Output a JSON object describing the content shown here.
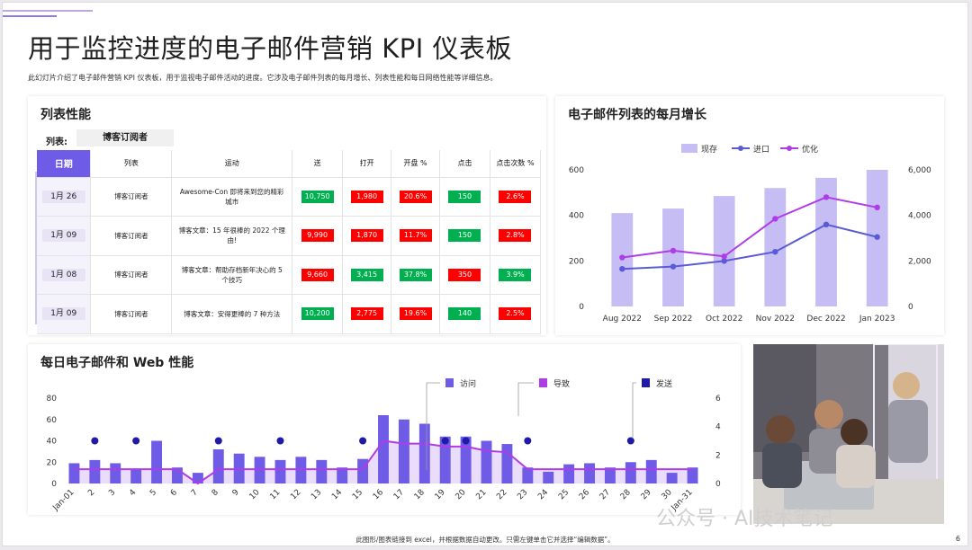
{
  "page": {
    "title": "用于监控进度的电子邮件营销 KPI 仪表板",
    "subtitle": "此幻灯片介绍了电子邮件营销 KPI 仪表板，用于监视电子邮件活动的进度。它涉及电子邮件列表的每月增长、列表性能和每日网络性能等详细信息。",
    "footer": "此图形/图表链接到 excel，并根据数据自动更改。只需左键单击它并选择“编辑数据”。",
    "page_number": "6",
    "watermark": "公众号 · AI技术笔记",
    "colors": {
      "accent": "#6e5ce6",
      "bar_light": "#c5bdf3",
      "line_blue": "#5b5bd6",
      "line_purple": "#b03ce8",
      "dot_navy": "#1f1aa8",
      "red": "#ff0000",
      "green": "#00b050"
    }
  },
  "list_perf": {
    "title": "列表性能",
    "list_label": "列表:",
    "list_value": "博客订阅者",
    "headers": [
      "日期",
      "列表",
      "运动",
      "送",
      "打开",
      "开盘 %",
      "点击",
      "点击次数 %"
    ],
    "rows": [
      {
        "date": "1月 26",
        "list": "博客订阅者",
        "campaign": "Awesome-Con 即将来到您的精彩城市",
        "sent": "10,750",
        "sent_c": "green",
        "open": "1,980",
        "open_c": "red",
        "open_pct": "20.6%",
        "open_pct_c": "red",
        "click": "150",
        "click_c": "green",
        "click_pct": "2.6%",
        "click_pct_c": "red"
      },
      {
        "date": "1月 09",
        "list": "博客订阅者",
        "campaign": "博客文章：15 年很棒的 2022 个理由!",
        "sent": "9,990",
        "sent_c": "red",
        "open": "1,870",
        "open_c": "red",
        "open_pct": "11.7%",
        "open_pct_c": "red",
        "click": "150",
        "click_c": "green",
        "click_pct": "2.8%",
        "click_pct_c": "red"
      },
      {
        "date": "1月 08",
        "list": "博客订阅者",
        "campaign": "博客文章：帮助存档新年决心的 5 个技巧",
        "sent": "9,660",
        "sent_c": "red",
        "open": "3,415",
        "open_c": "green",
        "open_pct": "37.8%",
        "open_pct_c": "green",
        "click": "350",
        "click_c": "red",
        "click_pct": "3.9%",
        "click_pct_c": "green"
      },
      {
        "date": "1月 09",
        "list": "博客订阅者",
        "campaign": "博客文章：安得更棒的 7 种方法",
        "sent": "10,200",
        "sent_c": "green",
        "open": "2,775",
        "open_c": "red",
        "open_pct": "19.6%",
        "open_pct_c": "red",
        "click": "140",
        "click_c": "green",
        "click_pct": "2.5%",
        "click_pct_c": "red"
      }
    ]
  },
  "chart_data": [
    {
      "type": "bar",
      "title": "电子邮件列表的每月增长",
      "categories": [
        "Aug 2022",
        "Sep 2022",
        "Oct 2022",
        "Nov 2022",
        "Dec 2022",
        "Jan 2023"
      ],
      "ylim": [
        0,
        600
      ],
      "y2lim": [
        0,
        6000
      ],
      "yticks": [
        "0",
        "200",
        "400",
        "600"
      ],
      "y2ticks": [
        "0",
        "2,000",
        "4,000",
        "6,000"
      ],
      "legend": [
        "现存",
        "进口",
        "优化"
      ],
      "legend_position": "top",
      "series": [
        {
          "name": "现存",
          "kind": "bar",
          "axis": "left",
          "values": [
            410,
            430,
            485,
            520,
            565,
            600
          ]
        },
        {
          "name": "进口",
          "kind": "line",
          "axis": "right",
          "values": [
            1650,
            1750,
            2000,
            2400,
            3600,
            3050
          ]
        },
        {
          "name": "优化",
          "kind": "line",
          "axis": "right",
          "values": [
            2150,
            2450,
            2200,
            3850,
            4800,
            4350
          ]
        }
      ]
    },
    {
      "type": "bar",
      "title": "每日电子邮件和 Web 性能",
      "categories": [
        "Jan-01",
        "2",
        "3",
        "4",
        "5",
        "6",
        "7",
        "8",
        "9",
        "10",
        "11",
        "12",
        "13",
        "14",
        "15",
        "16",
        "17",
        "18",
        "19",
        "20",
        "21",
        "22",
        "23",
        "24",
        "25",
        "26",
        "27",
        "28",
        "29",
        "30",
        "Jan-31"
      ],
      "ylim": [
        0,
        80
      ],
      "y2lim": [
        0,
        6
      ],
      "yticks": [
        "0",
        "20",
        "40",
        "60",
        "80"
      ],
      "y2ticks": [
        "0",
        "2",
        "4",
        "6"
      ],
      "legend": [
        "访问",
        "导致",
        "发送"
      ],
      "legend_position": "top-right",
      "series": [
        {
          "name": "访问",
          "kind": "bar",
          "axis": "left",
          "values": [
            19,
            22,
            19,
            14,
            40,
            15,
            10,
            32,
            28,
            25,
            22,
            25,
            22,
            15,
            23,
            64,
            60,
            56,
            44,
            44,
            40,
            37,
            15,
            11,
            18,
            19,
            15,
            20,
            22,
            10,
            15
          ]
        },
        {
          "name": "导致",
          "kind": "area",
          "axis": "right",
          "values": [
            1,
            1,
            1,
            1,
            1,
            1,
            0,
            1,
            1,
            1,
            1,
            1,
            1,
            1,
            1,
            3,
            2.8,
            2.8,
            2.6,
            2.6,
            2.3,
            2.2,
            1,
            1,
            1,
            1,
            1,
            1,
            1,
            1,
            1
          ]
        },
        {
          "name": "发送",
          "kind": "dot",
          "axis": "right",
          "values": [
            null,
            3,
            null,
            3,
            null,
            null,
            null,
            3,
            null,
            null,
            3,
            null,
            null,
            null,
            3,
            null,
            null,
            null,
            3,
            3,
            null,
            null,
            3,
            null,
            null,
            null,
            null,
            3,
            null,
            null,
            null
          ]
        }
      ]
    }
  ]
}
